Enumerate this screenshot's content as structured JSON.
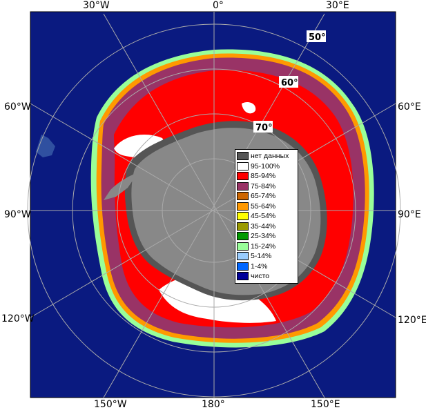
{
  "map": {
    "top_lon_labels": [
      "30°W",
      "0°",
      "30°E"
    ],
    "bottom_lon_labels": [
      "150°W",
      "180°",
      "150°E"
    ],
    "left_lon_labels": [
      "60°W",
      "90°W",
      "120°W"
    ],
    "right_lon_labels": [
      "60°E",
      "90°E",
      "120°E"
    ],
    "lat_labels": [
      "50°",
      "60°",
      "70°"
    ]
  },
  "legend": {
    "items": [
      {
        "label": "нет данных",
        "color": "#555555"
      },
      {
        "label": "95-100%",
        "color": "#ffffff"
      },
      {
        "label": "85-94%",
        "color": "#ff0000"
      },
      {
        "label": "75-84%",
        "color": "#993366"
      },
      {
        "label": "65-74%",
        "color": "#cc6600"
      },
      {
        "label": "55-64%",
        "color": "#ff9900"
      },
      {
        "label": "45-54%",
        "color": "#ffff00"
      },
      {
        "label": "35-44%",
        "color": "#999900"
      },
      {
        "label": "25-34%",
        "color": "#009900"
      },
      {
        "label": "15-24%",
        "color": "#99ff99"
      },
      {
        "label": "5-14%",
        "color": "#99ccff"
      },
      {
        "label": "1-4%",
        "color": "#0066ff"
      },
      {
        "label": "чисто",
        "color": "#000099"
      }
    ]
  },
  "colors": {
    "ocean": "#0a1a80",
    "land": "#888888",
    "graticule": "#aaaaaa"
  }
}
